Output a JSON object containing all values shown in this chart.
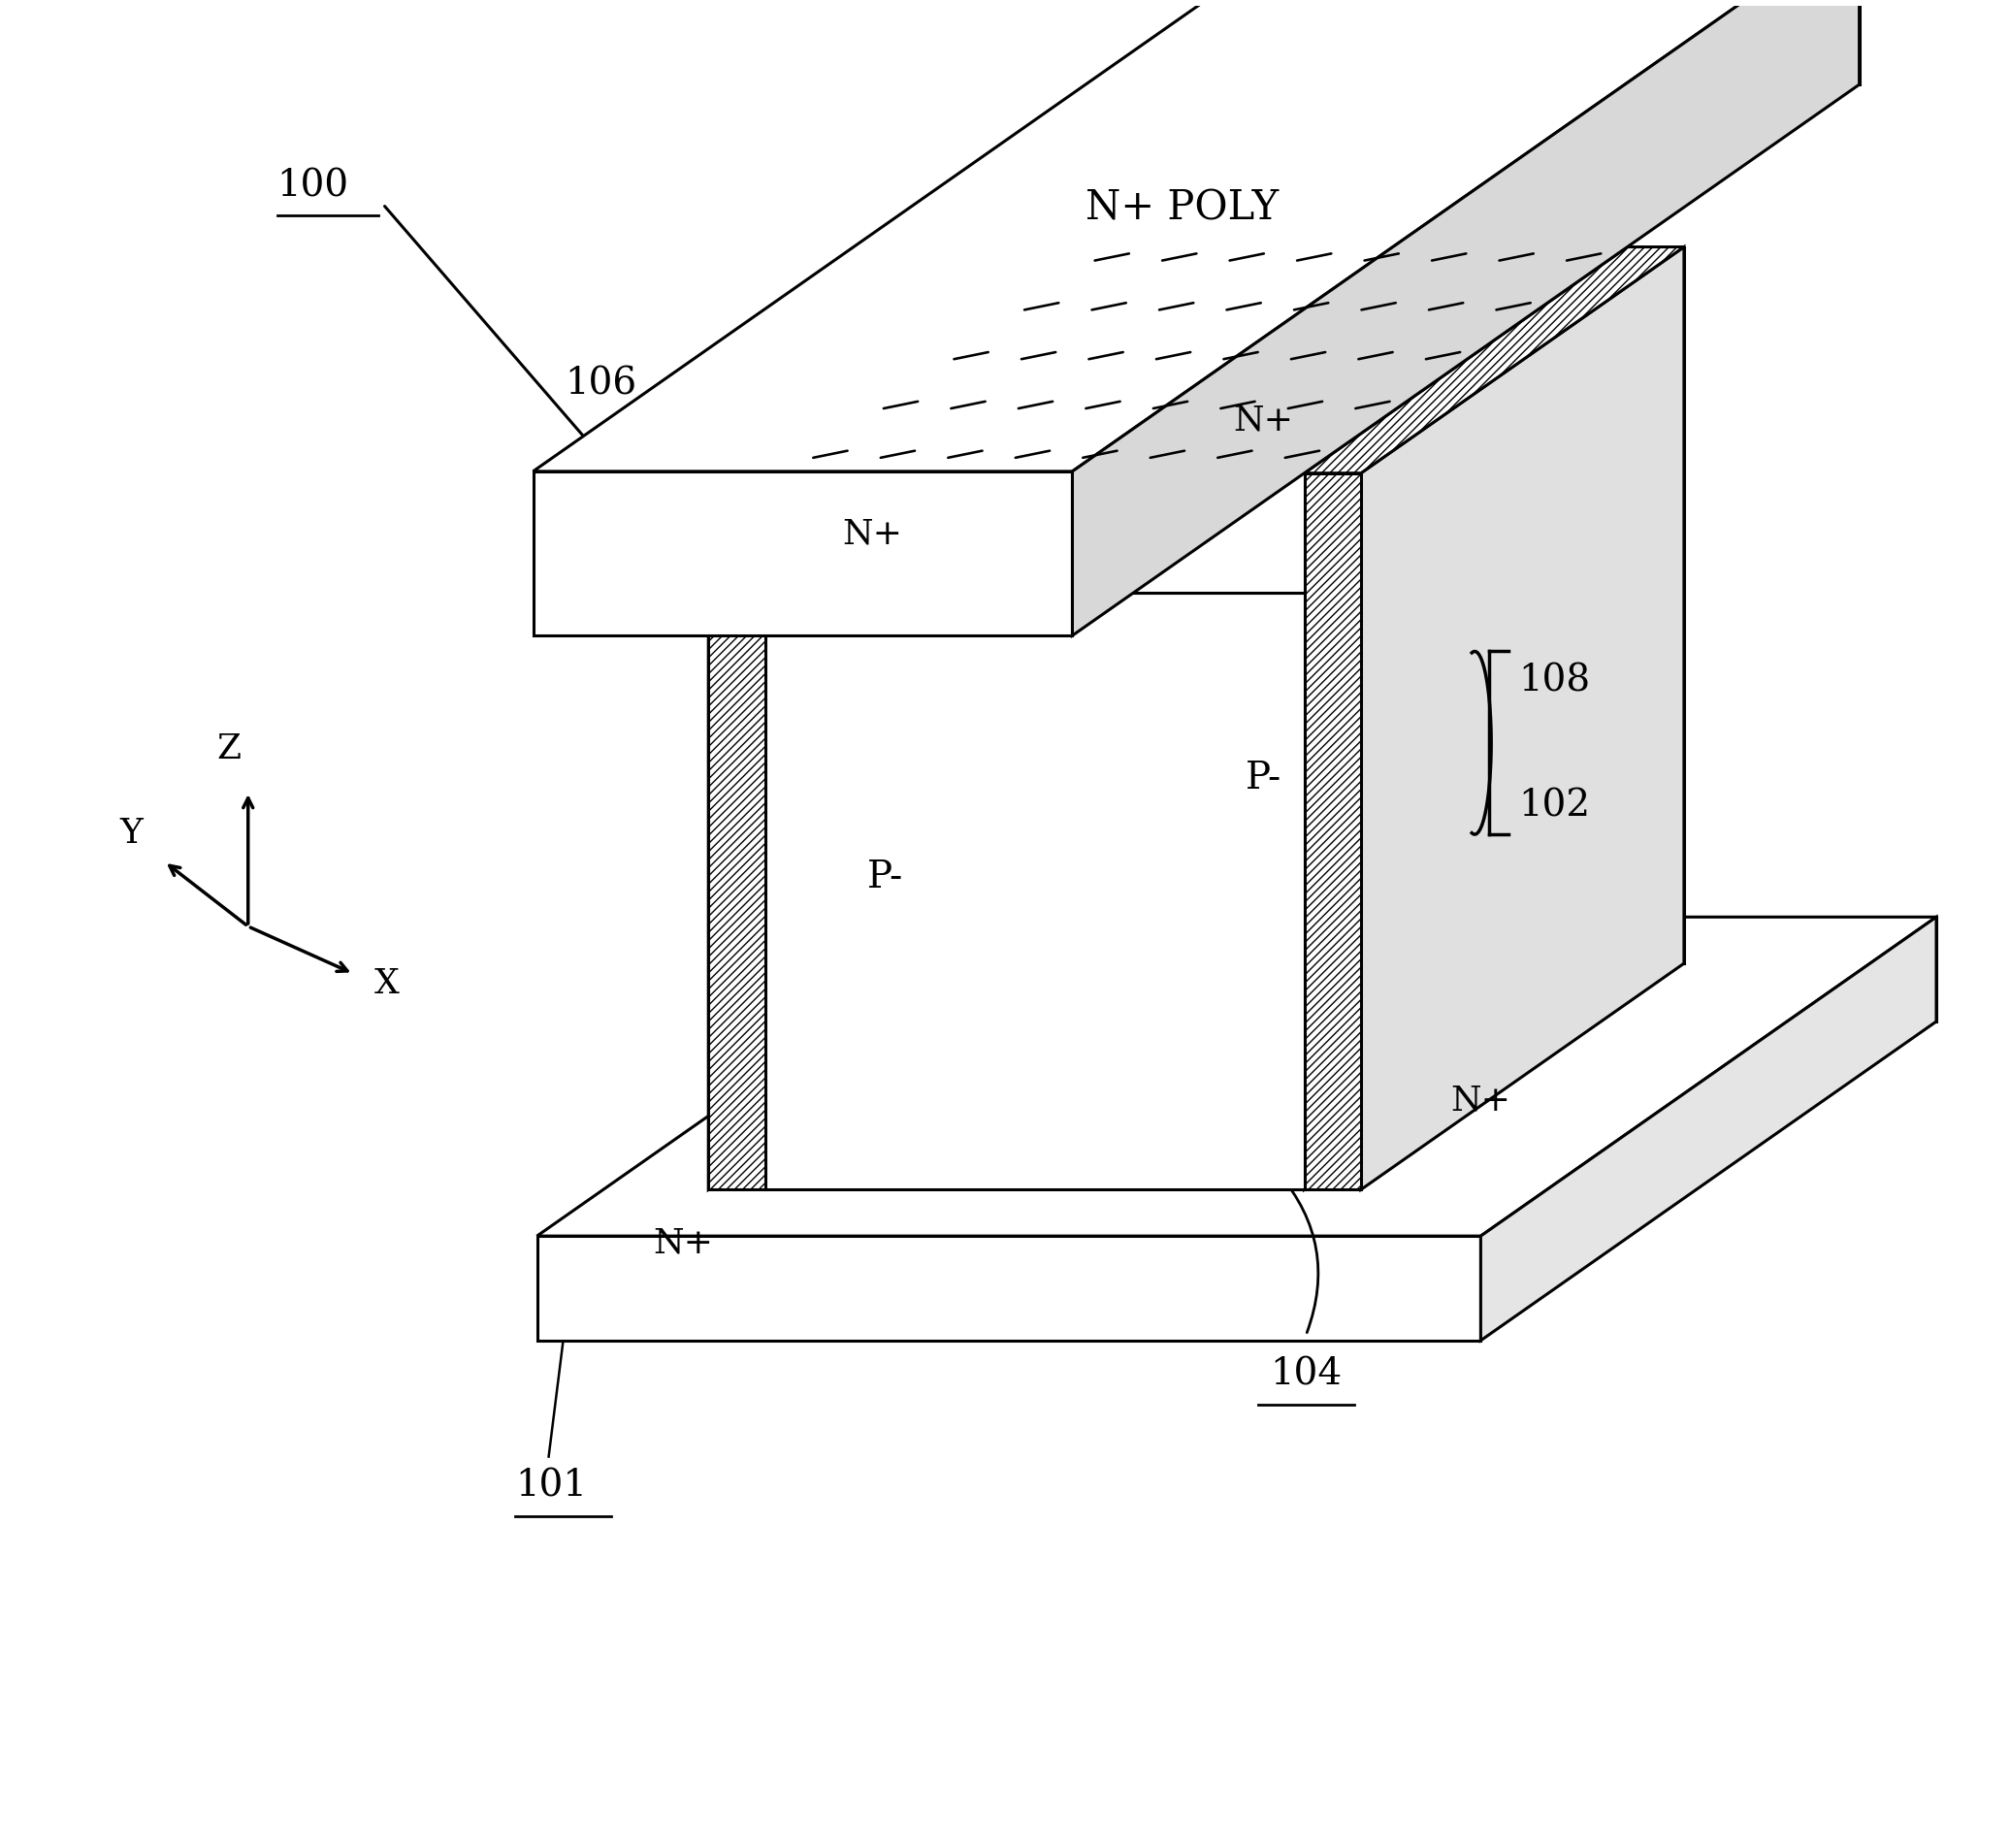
{
  "bg_color": "#ffffff",
  "line_color": "#000000",
  "line_width": 2.2,
  "fig_width": 20.72,
  "fig_height": 19.06,
  "labels": {
    "poly": "N+ POLY",
    "n100": "100",
    "n101": "101",
    "n102": "102",
    "n104": "104",
    "n106": "106",
    "n108": "108",
    "np1": "N+",
    "np2": "N+",
    "pm1": "P-",
    "pm2": "P-",
    "nb1": "N+",
    "nb2": "N+",
    "axZ": "Z",
    "axY": "Y",
    "axX": "X"
  }
}
